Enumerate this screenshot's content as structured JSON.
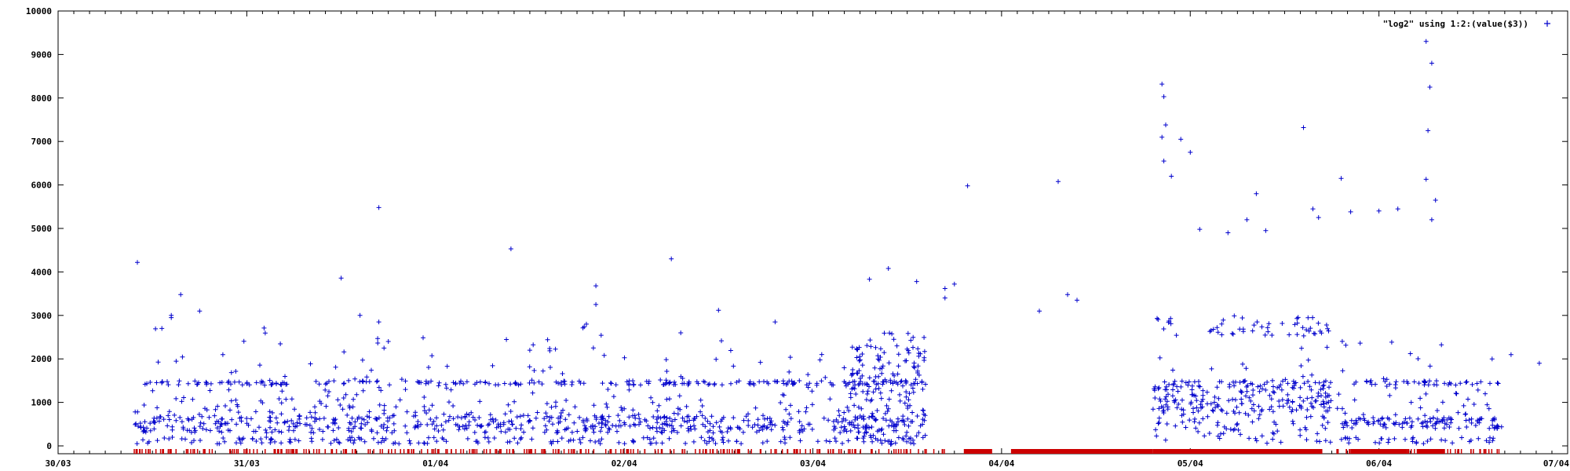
{
  "chart_data": {
    "type": "scatter",
    "title": "",
    "xlabel": "",
    "ylabel": "",
    "xlim": [
      "30/03",
      "07/04"
    ],
    "ylim": [
      0,
      10000
    ],
    "x_tick_labels": [
      "30/03",
      "31/03",
      "01/04",
      "02/04",
      "03/04",
      "04/04",
      "05/04",
      "06/04",
      "07/04"
    ],
    "y_tick_labels": [
      "0",
      "1000",
      "2000",
      "3000",
      "4000",
      "5000",
      "6000",
      "7000",
      "8000",
      "9000",
      "10000"
    ],
    "y_ticks": [
      0,
      1000,
      2000,
      3000,
      4000,
      5000,
      6000,
      7000,
      8000,
      9000,
      10000
    ],
    "grid": false,
    "legend_position": "top-right",
    "series": [
      {
        "name": "\"log2\" using 1:2:(value($3))",
        "marker": "+",
        "color": "#0000cc",
        "bands": [
          {
            "x_start": 0.4,
            "x_end": 4.6,
            "y_min": 300,
            "y_max": 700,
            "density": 0.9
          },
          {
            "x_start": 0.4,
            "x_end": 4.6,
            "y_min": 1400,
            "y_max": 1500,
            "density": 0.35
          },
          {
            "x_start": 0.4,
            "x_end": 4.6,
            "y_min": 50,
            "y_max": 200,
            "density": 0.3
          },
          {
            "x_start": 4.2,
            "x_end": 4.6,
            "y_min": 0,
            "y_max": 2600,
            "density": 0.5
          },
          {
            "x_start": 5.8,
            "x_end": 6.75,
            "y_min": 800,
            "y_max": 1500,
            "density": 0.9
          },
          {
            "x_start": 5.8,
            "x_end": 6.75,
            "y_min": 2500,
            "y_max": 3000,
            "density": 0.4
          },
          {
            "x_start": 5.8,
            "x_end": 6.75,
            "y_min": 50,
            "y_max": 700,
            "density": 0.4
          },
          {
            "x_start": 6.8,
            "x_end": 7.65,
            "y_min": 400,
            "y_max": 650,
            "density": 0.9
          },
          {
            "x_start": 6.8,
            "x_end": 7.65,
            "y_min": 1400,
            "y_max": 1500,
            "density": 0.3
          },
          {
            "x_start": 6.8,
            "x_end": 7.65,
            "y_min": 50,
            "y_max": 200,
            "density": 0.3
          }
        ],
        "points": [
          [
            0.42,
            4220
          ],
          [
            0.55,
            2700
          ],
          [
            0.6,
            2950
          ],
          [
            0.6,
            3000
          ],
          [
            0.65,
            3480
          ],
          [
            0.75,
            3100
          ],
          [
            1.5,
            3860
          ],
          [
            1.6,
            3000
          ],
          [
            1.7,
            2850
          ],
          [
            1.75,
            2400
          ],
          [
            1.7,
            5480
          ],
          [
            2.5,
            2200
          ],
          [
            2.4,
            4530
          ],
          [
            2.85,
            3680
          ],
          [
            2.85,
            3250
          ],
          [
            2.8,
            2800
          ],
          [
            3.25,
            4300
          ],
          [
            3.3,
            2600
          ],
          [
            3.5,
            3120
          ],
          [
            3.8,
            2850
          ],
          [
            4.3,
            3830
          ],
          [
            4.4,
            4080
          ],
          [
            4.55,
            3780
          ],
          [
            4.7,
            3620
          ],
          [
            4.75,
            3720
          ],
          [
            4.7,
            3400
          ],
          [
            4.82,
            5980
          ],
          [
            5.3,
            6080
          ],
          [
            5.2,
            3100
          ],
          [
            5.35,
            3480
          ],
          [
            5.4,
            3350
          ],
          [
            5.85,
            8320
          ],
          [
            5.86,
            8030
          ],
          [
            5.87,
            7380
          ],
          [
            5.85,
            7100
          ],
          [
            5.86,
            6550
          ],
          [
            5.9,
            6200
          ],
          [
            5.95,
            7050
          ],
          [
            6.0,
            6750
          ],
          [
            6.05,
            4980
          ],
          [
            6.2,
            4900
          ],
          [
            6.3,
            5200
          ],
          [
            6.35,
            5800
          ],
          [
            6.4,
            4950
          ],
          [
            6.6,
            7320
          ],
          [
            6.65,
            5450
          ],
          [
            6.68,
            5250
          ],
          [
            6.8,
            6150
          ],
          [
            6.85,
            5380
          ],
          [
            7.0,
            5400
          ],
          [
            7.1,
            5450
          ],
          [
            7.25,
            9300
          ],
          [
            7.28,
            8800
          ],
          [
            7.27,
            8250
          ],
          [
            7.26,
            7250
          ],
          [
            7.25,
            6130
          ],
          [
            7.3,
            5650
          ],
          [
            7.28,
            5200
          ],
          [
            7.6,
            2000
          ],
          [
            7.7,
            2100
          ],
          [
            7.85,
            1900
          ]
        ]
      },
      {
        "name": "",
        "marker": "rug",
        "color": "#cc0000",
        "dense_x_ranges": [
          [
            4.8,
            4.95
          ],
          [
            5.05,
            5.8
          ],
          [
            5.8,
            6.7
          ],
          [
            6.85,
            7.15
          ],
          [
            7.2,
            7.35
          ]
        ]
      }
    ]
  }
}
